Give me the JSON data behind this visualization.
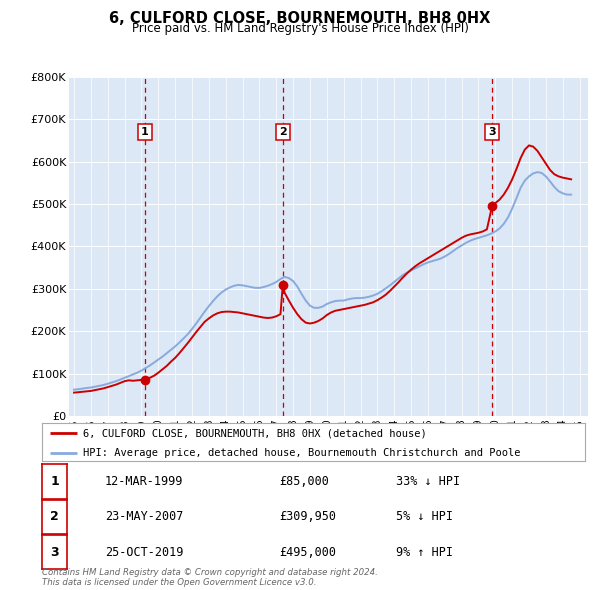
{
  "title": "6, CULFORD CLOSE, BOURNEMOUTH, BH8 0HX",
  "subtitle": "Price paid vs. HM Land Registry's House Price Index (HPI)",
  "fig_bg_color": "#ffffff",
  "plot_bg_color": "#dce8f5",
  "ylim": [
    0,
    800000
  ],
  "yticks": [
    0,
    100000,
    200000,
    300000,
    400000,
    500000,
    600000,
    700000,
    800000
  ],
  "ytick_labels": [
    "£0",
    "£100K",
    "£200K",
    "£300K",
    "£400K",
    "£500K",
    "£600K",
    "£700K",
    "£800K"
  ],
  "xlim_start": 1994.7,
  "xlim_end": 2025.5,
  "sale_dates": [
    1999.19,
    2007.39,
    2019.81
  ],
  "sale_prices": [
    85000,
    309950,
    495000
  ],
  "sale_labels": [
    "1",
    "2",
    "3"
  ],
  "red_line_color": "#cc0000",
  "blue_line_color": "#88aadd",
  "vline_color": "#cc0000",
  "grid_color": "#ffffff",
  "legend_label_red": "6, CULFORD CLOSE, BOURNEMOUTH, BH8 0HX (detached house)",
  "legend_label_blue": "HPI: Average price, detached house, Bournemouth Christchurch and Poole",
  "table_rows": [
    {
      "num": "1",
      "date": "12-MAR-1999",
      "price": "£85,000",
      "pct": "33% ↓ HPI"
    },
    {
      "num": "2",
      "date": "23-MAY-2007",
      "price": "£309,950",
      "pct": "5% ↓ HPI"
    },
    {
      "num": "3",
      "date": "25-OCT-2019",
      "price": "£495,000",
      "pct": "9% ↑ HPI"
    }
  ],
  "footer_text": "Contains HM Land Registry data © Crown copyright and database right 2024.\nThis data is licensed under the Open Government Licence v3.0.",
  "hpi_years": [
    1995.0,
    1995.25,
    1995.5,
    1995.75,
    1996.0,
    1996.25,
    1996.5,
    1996.75,
    1997.0,
    1997.25,
    1997.5,
    1997.75,
    1998.0,
    1998.25,
    1998.5,
    1998.75,
    1999.0,
    1999.25,
    1999.5,
    1999.75,
    2000.0,
    2000.25,
    2000.5,
    2000.75,
    2001.0,
    2001.25,
    2001.5,
    2001.75,
    2002.0,
    2002.25,
    2002.5,
    2002.75,
    2003.0,
    2003.25,
    2003.5,
    2003.75,
    2004.0,
    2004.25,
    2004.5,
    2004.75,
    2005.0,
    2005.25,
    2005.5,
    2005.75,
    2006.0,
    2006.25,
    2006.5,
    2006.75,
    2007.0,
    2007.25,
    2007.5,
    2007.75,
    2008.0,
    2008.25,
    2008.5,
    2008.75,
    2009.0,
    2009.25,
    2009.5,
    2009.75,
    2010.0,
    2010.25,
    2010.5,
    2010.75,
    2011.0,
    2011.25,
    2011.5,
    2011.75,
    2012.0,
    2012.25,
    2012.5,
    2012.75,
    2013.0,
    2013.25,
    2013.5,
    2013.75,
    2014.0,
    2014.25,
    2014.5,
    2014.75,
    2015.0,
    2015.25,
    2015.5,
    2015.75,
    2016.0,
    2016.25,
    2016.5,
    2016.75,
    2017.0,
    2017.25,
    2017.5,
    2017.75,
    2018.0,
    2018.25,
    2018.5,
    2018.75,
    2019.0,
    2019.25,
    2019.5,
    2019.75,
    2020.0,
    2020.25,
    2020.5,
    2020.75,
    2021.0,
    2021.25,
    2021.5,
    2021.75,
    2022.0,
    2022.25,
    2022.5,
    2022.75,
    2023.0,
    2023.25,
    2023.5,
    2023.75,
    2024.0,
    2024.25,
    2024.5
  ],
  "hpi_values": [
    62000,
    63000,
    64500,
    66000,
    67000,
    69000,
    71000,
    73000,
    76000,
    79000,
    82000,
    86000,
    90000,
    94000,
    98000,
    102000,
    107000,
    113000,
    119000,
    126000,
    133000,
    140000,
    148000,
    156000,
    164000,
    173000,
    183000,
    193000,
    205000,
    218000,
    232000,
    246000,
    259000,
    271000,
    282000,
    291000,
    298000,
    303000,
    307000,
    309000,
    308000,
    306000,
    304000,
    302000,
    302000,
    304000,
    307000,
    311000,
    316000,
    323000,
    328000,
    325000,
    318000,
    305000,
    288000,
    272000,
    260000,
    255000,
    255000,
    258000,
    264000,
    268000,
    271000,
    272000,
    272000,
    275000,
    277000,
    278000,
    278000,
    279000,
    281000,
    284000,
    288000,
    294000,
    301000,
    308000,
    316000,
    324000,
    332000,
    338000,
    343000,
    348000,
    353000,
    358000,
    362000,
    365000,
    368000,
    371000,
    376000,
    382000,
    389000,
    396000,
    402000,
    408000,
    413000,
    417000,
    420000,
    423000,
    426000,
    430000,
    435000,
    442000,
    453000,
    468000,
    489000,
    513000,
    538000,
    555000,
    565000,
    572000,
    575000,
    573000,
    565000,
    553000,
    540000,
    530000,
    525000,
    522000,
    522000
  ],
  "red_line_years": [
    1995.0,
    1995.25,
    1995.5,
    1995.75,
    1996.0,
    1996.25,
    1996.5,
    1996.75,
    1997.0,
    1997.25,
    1997.5,
    1997.75,
    1998.0,
    1998.25,
    1998.5,
    1998.75,
    1999.0,
    1999.19,
    1999.5,
    1999.75,
    2000.0,
    2000.25,
    2000.5,
    2000.75,
    2001.0,
    2001.25,
    2001.5,
    2001.75,
    2002.0,
    2002.25,
    2002.5,
    2002.75,
    2003.0,
    2003.25,
    2003.5,
    2003.75,
    2004.0,
    2004.25,
    2004.5,
    2004.75,
    2005.0,
    2005.25,
    2005.5,
    2005.75,
    2006.0,
    2006.25,
    2006.5,
    2006.75,
    2007.0,
    2007.25,
    2007.39,
    2007.5,
    2007.75,
    2008.0,
    2008.25,
    2008.5,
    2008.75,
    2009.0,
    2009.25,
    2009.5,
    2009.75,
    2010.0,
    2010.25,
    2010.5,
    2010.75,
    2011.0,
    2011.25,
    2011.5,
    2011.75,
    2012.0,
    2012.25,
    2012.5,
    2012.75,
    2013.0,
    2013.25,
    2013.5,
    2013.75,
    2014.0,
    2014.25,
    2014.5,
    2014.75,
    2015.0,
    2015.25,
    2015.5,
    2015.75,
    2016.0,
    2016.25,
    2016.5,
    2016.75,
    2017.0,
    2017.25,
    2017.5,
    2017.75,
    2018.0,
    2018.25,
    2018.5,
    2018.75,
    2019.0,
    2019.25,
    2019.5,
    2019.81,
    2020.0,
    2020.25,
    2020.5,
    2020.75,
    2021.0,
    2021.25,
    2021.5,
    2021.75,
    2022.0,
    2022.25,
    2022.5,
    2022.75,
    2023.0,
    2023.25,
    2023.5,
    2023.75,
    2024.0,
    2024.25,
    2024.5
  ],
  "red_line_values": [
    55000,
    56000,
    57000,
    58000,
    59000,
    61000,
    63000,
    65000,
    68000,
    71000,
    74000,
    78000,
    82000,
    84000,
    83000,
    84000,
    85000,
    85000,
    90000,
    95000,
    102000,
    110000,
    118000,
    128000,
    137000,
    148000,
    160000,
    172000,
    185000,
    198000,
    210000,
    222000,
    230000,
    237000,
    242000,
    245000,
    246000,
    246000,
    245000,
    244000,
    242000,
    240000,
    238000,
    236000,
    234000,
    232000,
    231000,
    232000,
    235000,
    240000,
    309950,
    290000,
    272000,
    255000,
    240000,
    228000,
    220000,
    218000,
    220000,
    224000,
    230000,
    238000,
    244000,
    248000,
    250000,
    252000,
    254000,
    256000,
    258000,
    260000,
    262000,
    265000,
    268000,
    273000,
    279000,
    286000,
    295000,
    305000,
    315000,
    326000,
    336000,
    345000,
    353000,
    360000,
    366000,
    372000,
    378000,
    384000,
    390000,
    396000,
    402000,
    408000,
    414000,
    420000,
    425000,
    428000,
    430000,
    432000,
    435000,
    440000,
    495000,
    502000,
    510000,
    522000,
    538000,
    558000,
    582000,
    608000,
    628000,
    638000,
    635000,
    625000,
    610000,
    595000,
    580000,
    570000,
    565000,
    562000,
    560000,
    558000
  ]
}
